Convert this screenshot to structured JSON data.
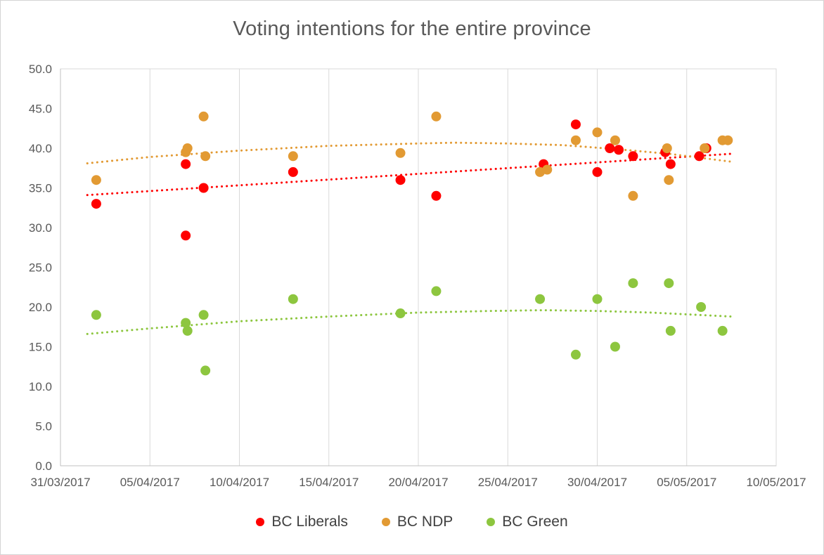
{
  "chart_data": {
    "type": "scatter",
    "title": "Voting intentions for the entire province",
    "x_axis": {
      "tick_labels": [
        "31/03/2017",
        "05/04/2017",
        "10/04/2017",
        "15/04/2017",
        "20/04/2017",
        "25/04/2017",
        "30/04/2017",
        "05/05/2017",
        "10/05/2017"
      ],
      "range_days": [
        0,
        40
      ],
      "tick_interval_days": 5
    },
    "y_axis": {
      "tick_labels": [
        "0.0",
        "5.0",
        "10.0",
        "15.0",
        "20.0",
        "25.0",
        "30.0",
        "35.0",
        "40.0",
        "45.0",
        "50.0"
      ],
      "range": [
        0,
        50
      ],
      "tick_interval": 5
    },
    "grid": "vertical-major",
    "legend_position": "bottom",
    "colors": {
      "grid": "#d9d9d9",
      "axis": "#c0c0c0",
      "tick_text": "#595959",
      "title_text": "#595959",
      "legend_text": "#404040"
    },
    "series": [
      {
        "name": "BC Liberals",
        "color": "#ff0000",
        "points": [
          [
            2,
            33
          ],
          [
            7,
            29
          ],
          [
            7,
            38
          ],
          [
            8,
            35
          ],
          [
            13,
            37
          ],
          [
            19,
            36
          ],
          [
            21,
            34
          ],
          [
            27,
            38
          ],
          [
            28.8,
            43
          ],
          [
            30,
            37
          ],
          [
            30.7,
            40
          ],
          [
            31.2,
            39.8
          ],
          [
            32,
            39
          ],
          [
            33.8,
            39.5
          ],
          [
            34.1,
            38
          ],
          [
            35.7,
            39
          ],
          [
            36.1,
            40
          ]
        ],
        "trend": [
          [
            1.5,
            34.1
          ],
          [
            37.5,
            39.3
          ]
        ]
      },
      {
        "name": "BC NDP",
        "color": "#e29a33",
        "points": [
          [
            2,
            36
          ],
          [
            7,
            39.5
          ],
          [
            7.1,
            40
          ],
          [
            8,
            44
          ],
          [
            8.1,
            39
          ],
          [
            13,
            39
          ],
          [
            19,
            39.4
          ],
          [
            21,
            44
          ],
          [
            26.8,
            37
          ],
          [
            27.2,
            37.3
          ],
          [
            28.8,
            41
          ],
          [
            30,
            42
          ],
          [
            31,
            41
          ],
          [
            32,
            34
          ],
          [
            33.9,
            40
          ],
          [
            34,
            36
          ],
          [
            36,
            40
          ],
          [
            37,
            41
          ],
          [
            37.3,
            41
          ]
        ],
        "trend": [
          [
            1.5,
            38.1
          ],
          [
            5,
            38.9
          ],
          [
            10,
            39.7
          ],
          [
            15,
            40.3
          ],
          [
            20,
            40.6
          ],
          [
            22,
            40.7
          ],
          [
            25,
            40.6
          ],
          [
            28,
            40.4
          ],
          [
            31,
            39.9
          ],
          [
            34,
            39.3
          ],
          [
            37.5,
            38.3
          ]
        ]
      },
      {
        "name": "BC Green",
        "color": "#8dc63f",
        "points": [
          [
            2,
            19
          ],
          [
            7,
            18
          ],
          [
            7.1,
            17
          ],
          [
            8,
            19
          ],
          [
            8.1,
            12
          ],
          [
            13,
            21
          ],
          [
            19,
            19.2
          ],
          [
            21,
            22
          ],
          [
            26.8,
            21
          ],
          [
            28.8,
            14
          ],
          [
            30,
            21
          ],
          [
            31,
            15
          ],
          [
            32,
            23
          ],
          [
            34,
            23
          ],
          [
            34.1,
            17
          ],
          [
            35.8,
            20
          ],
          [
            37,
            17
          ]
        ],
        "trend": [
          [
            1.5,
            16.6
          ],
          [
            5,
            17.3
          ],
          [
            10,
            18.2
          ],
          [
            15,
            18.8
          ],
          [
            20,
            19.3
          ],
          [
            24,
            19.5
          ],
          [
            27,
            19.6
          ],
          [
            30,
            19.5
          ],
          [
            33,
            19.3
          ],
          [
            37.5,
            18.8
          ]
        ]
      }
    ]
  }
}
